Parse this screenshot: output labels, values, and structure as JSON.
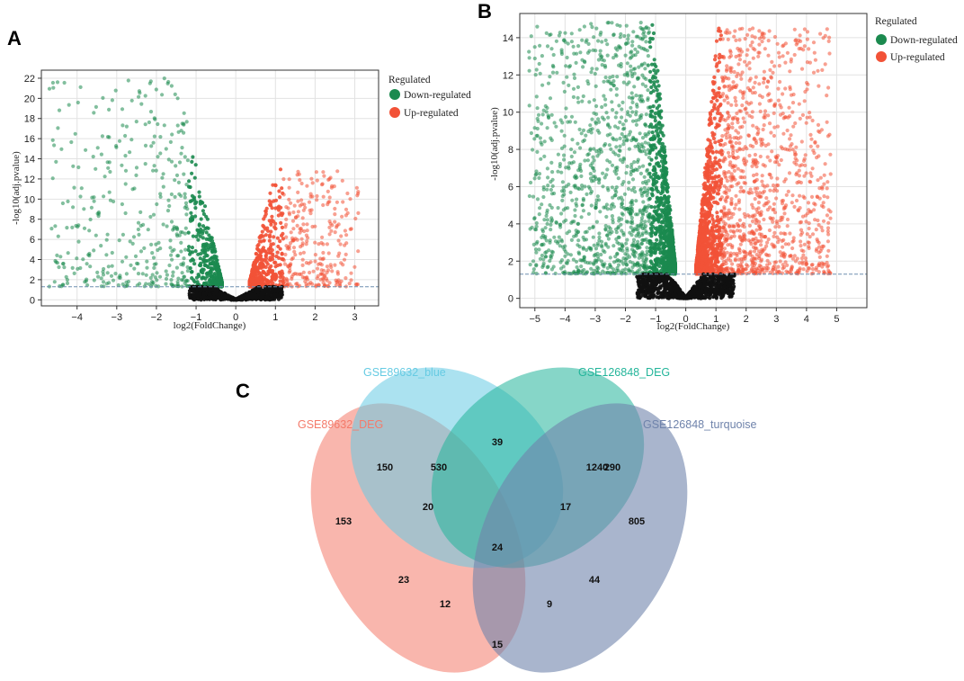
{
  "chart_data": [
    {
      "type": "scatter",
      "panel": "A",
      "title": "",
      "xlabel": "log2(FoldChange)",
      "ylabel": "-log10(adj.pvalue)",
      "xlim": [
        -4.9,
        3.6
      ],
      "ylim": [
        -0.6,
        22.8
      ],
      "xticks": [
        -4,
        -3,
        -2,
        -1,
        0,
        1,
        2,
        3
      ],
      "yticks": [
        0,
        2,
        4,
        6,
        8,
        10,
        12,
        14,
        16,
        18,
        20,
        22
      ],
      "threshold_y": 1.3,
      "grid": true,
      "legend": {
        "title": "Regulated",
        "entries": [
          {
            "name": "Down-regulated",
            "color": "#1b8a4f"
          },
          {
            "name": "Up-regulated",
            "color": "#f25237"
          }
        ]
      },
      "series": [
        {
          "name": "Down-regulated",
          "color": "#1b8a4f",
          "x_range": [
            -4.7,
            -0.35
          ],
          "y_max": 22.0,
          "approx_count": 900
        },
        {
          "name": "Up-regulated",
          "color": "#f25237",
          "x_range": [
            0.35,
            3.1
          ],
          "y_max": 13.0,
          "approx_count": 950
        },
        {
          "name": "Not significant",
          "color": "#111111",
          "x_range": [
            -1.1,
            1.3
          ],
          "y_max": 1.3,
          "approx_count": 700
        }
      ]
    },
    {
      "type": "scatter",
      "panel": "B",
      "title": "",
      "xlabel": "log2(FoldChange)",
      "ylabel": "-log10(adj.pvalue)",
      "xlim": [
        -5.5,
        6.0
      ],
      "ylim": [
        -0.5,
        15.3
      ],
      "xticks": [
        -5,
        -4,
        -3,
        -2,
        -1,
        0,
        1,
        2,
        3,
        4,
        5
      ],
      "yticks": [
        0,
        2,
        4,
        6,
        8,
        10,
        12,
        14
      ],
      "threshold_y": 1.3,
      "grid": true,
      "legend": {
        "title": "Regulated",
        "entries": [
          {
            "name": "Down-regulated",
            "color": "#1b8a4f"
          },
          {
            "name": "Up-regulated",
            "color": "#f25237"
          }
        ]
      },
      "series": [
        {
          "name": "Down-regulated",
          "color": "#1b8a4f",
          "x_range": [
            -5.2,
            -0.35
          ],
          "y_max": 14.8,
          "approx_count": 2600
        },
        {
          "name": "Up-regulated",
          "color": "#f25237",
          "x_range": [
            0.35,
            4.8
          ],
          "y_max": 14.5,
          "approx_count": 2600
        },
        {
          "name": "Not significant",
          "color": "#111111",
          "x_range": [
            -1.8,
            1.8
          ],
          "y_max": 1.3,
          "approx_count": 900
        }
      ]
    },
    {
      "type": "venn",
      "panel": "C",
      "sets": [
        {
          "name": "GSE89632_DEG",
          "color": "#f47a6a"
        },
        {
          "name": "GSE89632_blue",
          "color": "#66cbe3"
        },
        {
          "name": "GSE126848_DEG",
          "color": "#23b59a"
        },
        {
          "name": "GSE126848_turquoise",
          "color": "#6f83ab"
        }
      ],
      "regions": [
        {
          "sets": [
            "GSE89632_DEG"
          ],
          "value": 153
        },
        {
          "sets": [
            "GSE89632_blue"
          ],
          "value": 530
        },
        {
          "sets": [
            "GSE126848_DEG"
          ],
          "value": 1240
        },
        {
          "sets": [
            "GSE126848_turquoise"
          ],
          "value": 805
        },
        {
          "sets": [
            "GSE89632_DEG",
            "GSE89632_blue"
          ],
          "value": 150
        },
        {
          "sets": [
            "GSE89632_blue",
            "GSE126848_DEG"
          ],
          "value": 39
        },
        {
          "sets": [
            "GSE126848_DEG",
            "GSE126848_turquoise"
          ],
          "value": 290
        },
        {
          "sets": [
            "GSE89632_DEG",
            "GSE89632_blue",
            "GSE126848_DEG"
          ],
          "value": 20
        },
        {
          "sets": [
            "GSE89632_blue",
            "GSE126848_DEG",
            "GSE126848_turquoise"
          ],
          "value": 17
        },
        {
          "sets": [
            "GSE89632_DEG",
            "GSE89632_blue",
            "GSE126848_DEG",
            "GSE126848_turquoise"
          ],
          "value": 24
        },
        {
          "sets": [
            "GSE89632_DEG",
            "GSE126848_DEG"
          ],
          "value": 23
        },
        {
          "sets": [
            "GSE89632_blue",
            "GSE126848_turquoise"
          ],
          "value": 44
        },
        {
          "sets": [
            "GSE89632_DEG",
            "GSE126848_DEG",
            "GSE126848_turquoise"
          ],
          "value": 12
        },
        {
          "sets": [
            "GSE89632_DEG",
            "GSE89632_blue",
            "GSE126848_turquoise"
          ],
          "value": 9
        },
        {
          "sets": [
            "GSE89632_DEG",
            "GSE126848_turquoise"
          ],
          "value": 15
        }
      ]
    }
  ],
  "panels": {
    "a": "A",
    "b": "B",
    "c": "C"
  }
}
